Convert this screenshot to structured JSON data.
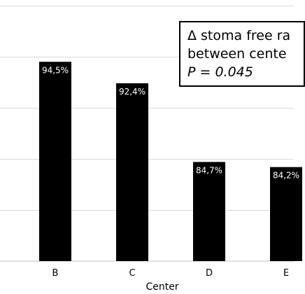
{
  "chart_data": {
    "type": "bar",
    "categories": [
      "B",
      "C",
      "D",
      "E"
    ],
    "values": [
      94.5,
      92.4,
      84.7,
      84.2
    ],
    "value_labels": [
      "94,5%",
      "92,4%",
      "84,7%",
      "84,2%"
    ],
    "xlabel": "Center",
    "ylim": [
      75,
      100
    ],
    "grid": true,
    "colors": {
      "bar": "#000000",
      "grid": "#d9d9d9"
    },
    "annotation": {
      "line1": "Δ stoma free ra",
      "line2": "between cente",
      "line3": "P = 0.045"
    }
  }
}
